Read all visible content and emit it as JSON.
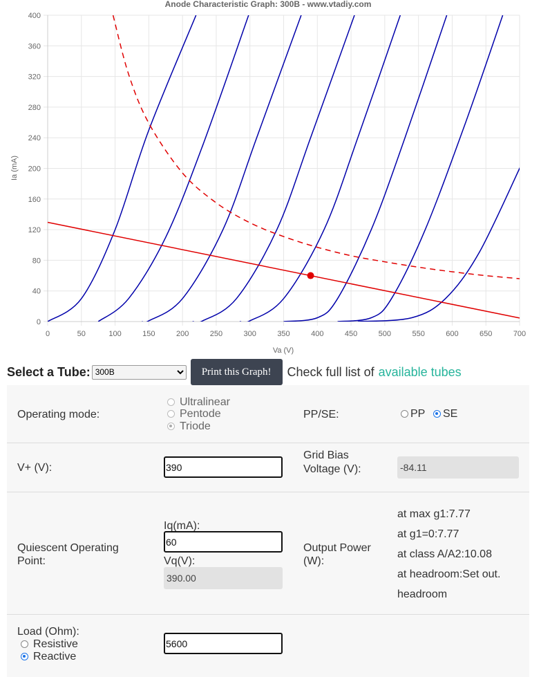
{
  "chart_data": {
    "type": "line",
    "title": "Anode Characteristic Graph: 300B - www.vtadiy.com",
    "xlabel": "Va (V)",
    "ylabel": "Ia (mA)",
    "xlim": [
      0,
      700
    ],
    "ylim": [
      0,
      400
    ],
    "xticks": [
      0,
      50,
      100,
      150,
      200,
      250,
      300,
      350,
      400,
      450,
      500,
      550,
      600,
      650,
      700
    ],
    "yticks": [
      0,
      40,
      80,
      120,
      160,
      200,
      240,
      280,
      320,
      360,
      400
    ],
    "grid": true,
    "curves": [
      {
        "points": [
          [
            0,
            0
          ],
          [
            50,
            30
          ],
          [
            100,
            120
          ],
          [
            150,
            250
          ],
          [
            220,
            400
          ]
        ]
      },
      {
        "points": [
          [
            75,
            0
          ],
          [
            120,
            30
          ],
          [
            175,
            110
          ],
          [
            230,
            230
          ],
          [
            298,
            400
          ]
        ]
      },
      {
        "points": [
          [
            140,
            0
          ],
          [
            150,
            1
          ],
          [
            200,
            30
          ],
          [
            260,
            120
          ],
          [
            310,
            240
          ],
          [
            376,
            400
          ]
        ]
      },
      {
        "points": [
          [
            215,
            0
          ],
          [
            230,
            1
          ],
          [
            280,
            30
          ],
          [
            340,
            120
          ],
          [
            390,
            240
          ],
          [
            455,
            400
          ]
        ]
      },
      {
        "points": [
          [
            285,
            0
          ],
          [
            300,
            1
          ],
          [
            350,
            30
          ],
          [
            410,
            120
          ],
          [
            460,
            240
          ],
          [
            523,
            400
          ]
        ]
      },
      {
        "points": [
          [
            350,
            0
          ],
          [
            400,
            5
          ],
          [
            430,
            30
          ],
          [
            480,
            120
          ],
          [
            530,
            240
          ],
          [
            592,
            400
          ]
        ]
      },
      {
        "points": [
          [
            430,
            0
          ],
          [
            480,
            5
          ],
          [
            510,
            30
          ],
          [
            560,
            120
          ],
          [
            620,
            260
          ],
          [
            675,
            400
          ]
        ]
      },
      {
        "points": [
          [
            460,
            0
          ],
          [
            540,
            5
          ],
          [
            590,
            30
          ],
          [
            640,
            90
          ],
          [
            700,
            200
          ],
          [
            702,
            205
          ]
        ]
      }
    ],
    "load_line": [
      [
        0,
        129.6
      ],
      [
        700,
        4.6
      ]
    ],
    "dissipation_curve": [
      [
        97,
        400
      ],
      [
        120,
        323
      ],
      [
        150,
        259
      ],
      [
        200,
        194
      ],
      [
        250,
        155
      ],
      [
        300,
        129
      ],
      [
        350,
        111
      ],
      [
        400,
        97
      ],
      [
        450,
        86
      ],
      [
        500,
        78
      ],
      [
        550,
        71
      ],
      [
        600,
        65
      ],
      [
        650,
        60
      ],
      [
        700,
        56
      ]
    ],
    "operating_point": [
      390,
      60
    ],
    "colors": {
      "curves": "#0000aa",
      "load_line": "#e00000",
      "dissipation": "#e00000",
      "grid": "#e6e6e6"
    }
  },
  "toolbar": {
    "select_label": "Select a Tube:",
    "tube_value": "300B",
    "print_label": "Print this Graph!",
    "check_text": "Check full list of",
    "tubes_link": "available tubes"
  },
  "form": {
    "operating_mode": {
      "label": "Operating mode:",
      "options": [
        "Ultralinear",
        "Pentode",
        "Triode"
      ],
      "selected": "Triode"
    },
    "pp_se": {
      "label": "PP/SE:",
      "pp": "PP",
      "se": "SE",
      "selected": "SE"
    },
    "v_plus": {
      "label": "V+ (V):",
      "value": "390"
    },
    "grid_bias": {
      "label_1": "Grid Bias",
      "label_2": "Voltage (V):",
      "value": "-84.11"
    },
    "quiescent": {
      "label_1": "Quiescent Operating",
      "label_2": "Point:",
      "iq_label": "Iq(mA):",
      "iq_value": "60",
      "vq_label": "Vq(V):",
      "vq_value": "390.00"
    },
    "output_power": {
      "label_1": "Output Power",
      "label_2": "(W):",
      "at_max_g1": "at max g1:7.77",
      "at_g1_0": "at g1=0:7.77",
      "at_class_a": "at class A/A2:10.08",
      "at_headroom": "at headroom:Set out.",
      "headroom": "headroom"
    },
    "load": {
      "label": "Load (Ohm):",
      "resistive": "Resistive",
      "reactive": "Reactive",
      "selected": "Reactive",
      "value": "5600"
    }
  }
}
